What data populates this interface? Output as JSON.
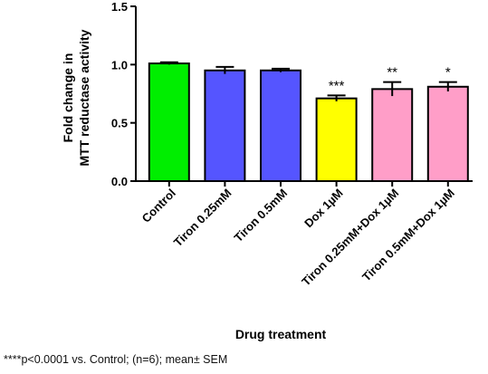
{
  "chart_data": {
    "type": "bar",
    "title": "",
    "xlabel": "Drug treatment",
    "ylabel": [
      "Fold change in",
      "MTT reductase activity"
    ],
    "ylim": [
      0,
      1.5
    ],
    "yticks": [
      "0.0",
      "0.5",
      "1.0",
      "1.5"
    ],
    "categories": [
      "Control",
      "Tiron 0.25mM",
      "Tiron 0.5mM",
      "Dox 1µM",
      "Tiron 0.25mM+Dox 1µM",
      "Tiron 0.5mM+Dox 1µM"
    ],
    "values": [
      1.01,
      0.95,
      0.95,
      0.71,
      0.79,
      0.81
    ],
    "errors": [
      0.01,
      0.03,
      0.015,
      0.025,
      0.06,
      0.04
    ],
    "annotations": [
      "",
      "",
      "",
      "***",
      "**",
      "*"
    ],
    "colors": [
      "#00ee00",
      "#5555ff",
      "#5555ff",
      "#ffff00",
      "#ff9ec8",
      "#ff9ec8"
    ],
    "grid": false,
    "footnote": "****p<0.0001 vs. Control; (n=6); mean± SEM"
  }
}
